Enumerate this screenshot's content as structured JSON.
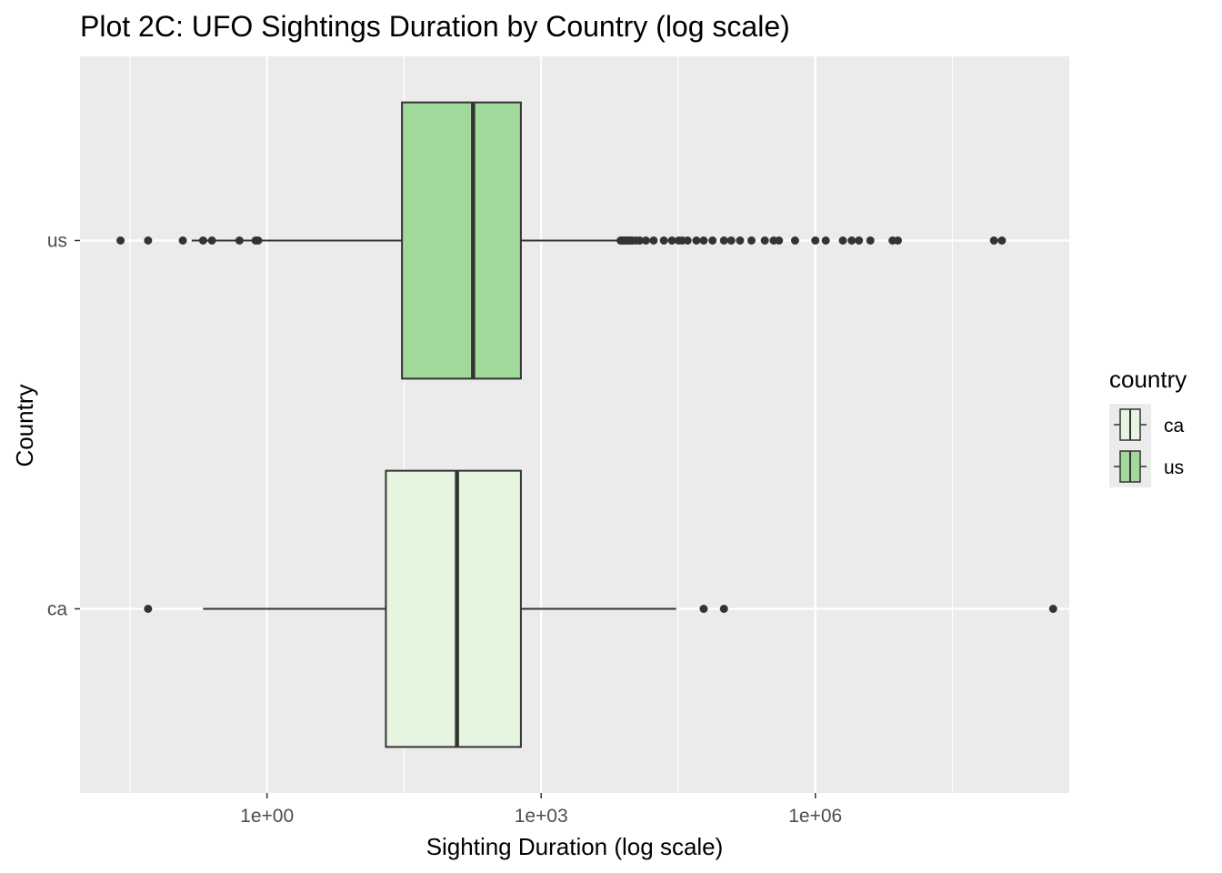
{
  "chart_data": {
    "type": "boxplot",
    "orientation": "horizontal",
    "title": "Plot 2C: UFO Sightings Duration by Country (log scale)",
    "xlabel": "Sighting Duration (log scale)",
    "ylabel": "Country",
    "x_scale": "log10",
    "x_range": [
      0.009,
      600000000
    ],
    "x_ticks": [
      {
        "value": 1,
        "label": "1e+00"
      },
      {
        "value": 1000,
        "label": "1e+03"
      },
      {
        "value": 1000000,
        "label": "1e+06"
      }
    ],
    "categories": [
      "ca",
      "us"
    ],
    "legend": {
      "title": "country",
      "placement": "right",
      "entries": [
        {
          "label": "ca",
          "color": "#e5f5e0"
        },
        {
          "label": "us",
          "color": "#a1d99b"
        }
      ]
    },
    "series": [
      {
        "category": "ca",
        "color": "#e5f5e0",
        "whisker_low": 0.2,
        "q1": 20,
        "median": 120,
        "q3": 600,
        "whisker_high": 30000,
        "outliers": [
          0.05,
          60000,
          100000,
          400000000
        ]
      },
      {
        "category": "us",
        "color": "#a1d99b",
        "whisker_low": 0.15,
        "q1": 30,
        "median": 180,
        "q3": 600,
        "whisker_high": 7200,
        "outliers": [
          0.025,
          0.05,
          0.12,
          0.2,
          0.25,
          0.5,
          0.75,
          0.8,
          7400,
          7700,
          8000,
          8400,
          8800,
          9200,
          9600,
          10000,
          11000,
          12000,
          14000,
          17000,
          22000,
          27000,
          32000,
          35000,
          40000,
          50000,
          60000,
          75000,
          100000,
          120000,
          150000,
          200000,
          280000,
          350000,
          400000,
          600000,
          1000000,
          1300000,
          2000000,
          2500000,
          3000000,
          4000000,
          7000000,
          8000000,
          90000000,
          110000000
        ]
      }
    ],
    "colors": {
      "panel_bg": "#ebebeb",
      "grid": "#ffffff",
      "box_stroke": "#333333"
    }
  }
}
